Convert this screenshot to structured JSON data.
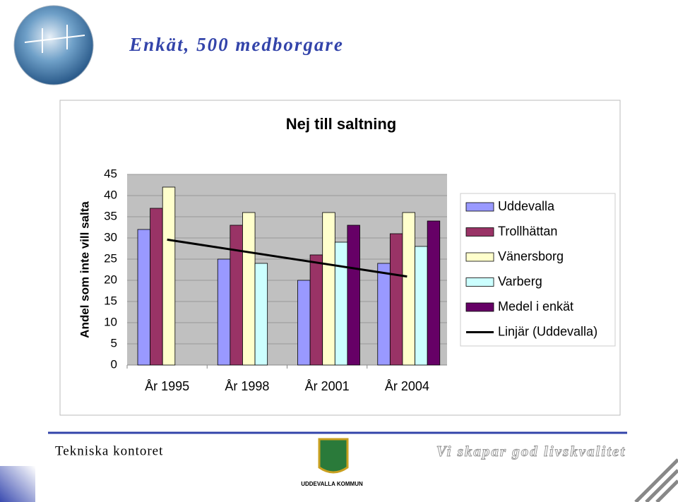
{
  "header": {
    "title": "Enkät, 500 medborgare"
  },
  "chart_data": {
    "type": "bar",
    "title": "Nej till saltning",
    "y_label": "Andel som inte vill salta",
    "categories": [
      "År 1995",
      "År 1998",
      "År 2001",
      "År 2004"
    ],
    "series": [
      {
        "name": "Uddevalla",
        "color": "#9999ff",
        "values": [
          32,
          25,
          20,
          24
        ]
      },
      {
        "name": "Trollhättan",
        "color": "#993366",
        "values": [
          37,
          33,
          26,
          31
        ]
      },
      {
        "name": "Vänersborg",
        "color": "#ffffcc",
        "values": [
          42,
          36,
          36,
          36
        ]
      },
      {
        "name": "Varberg",
        "color": "#ccffff",
        "values": [
          null,
          24,
          29,
          28
        ]
      },
      {
        "name": "Medel i enkät",
        "color": "#660066",
        "values": [
          null,
          null,
          33,
          34
        ]
      },
      {
        "name": "Linjär (Uddevalla)",
        "color": "#000000",
        "type": "line",
        "values": [
          29.6,
          26.7,
          23.8,
          20.9
        ]
      }
    ],
    "ylim": [
      0,
      45
    ],
    "yticks": [
      0,
      5,
      10,
      15,
      20,
      25,
      30,
      35,
      40,
      45
    ],
    "grid": true,
    "legend": "right"
  },
  "footer": {
    "left": "Tekniska kontoret",
    "logo": "UDDEVALLA KOMMUN",
    "right": "Vi skapar god livskvalitet"
  }
}
